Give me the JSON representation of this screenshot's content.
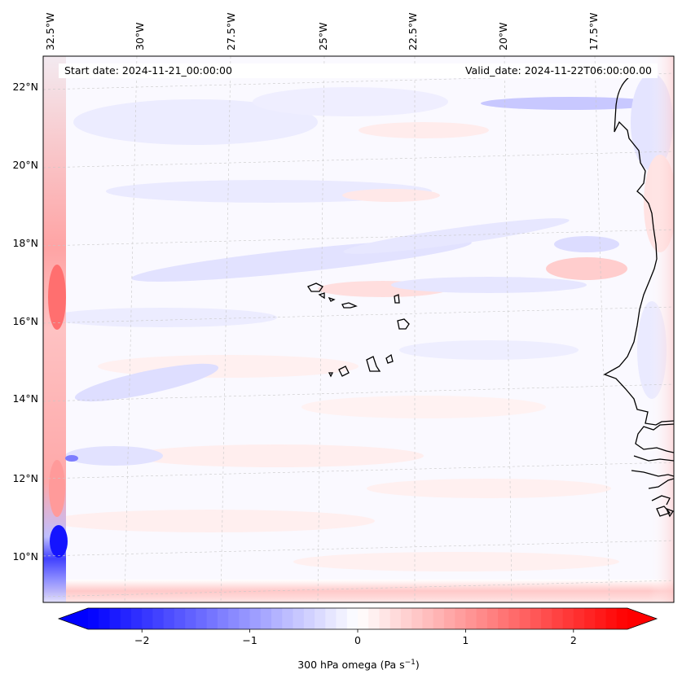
{
  "header": {
    "start_date": "Start date: 2024-11-21_00:00:00",
    "valid_date": "Valid_date: 2024-11-22T06:00:00.00"
  },
  "axes": {
    "lon_labels": [
      "32.5°W",
      "30°W",
      "27.5°W",
      "25°W",
      "22.5°W",
      "20°W",
      "17.5°W"
    ],
    "lat_labels": [
      "22°N",
      "20°N",
      "18°N",
      "16°N",
      "14°N",
      "12°N",
      "10°N"
    ]
  },
  "colorbar": {
    "label": "300 hPa omega (Pa s",
    "label_sup": "−1",
    "label_end": ")",
    "ticks": [
      "−2",
      "−1",
      "0",
      "1",
      "2"
    ],
    "tick_values": [
      -2,
      -1,
      0,
      1,
      2
    ],
    "range": [
      -2.5,
      2.5
    ],
    "colors": {
      "negative": "#0000ff",
      "zero": "#ffffff",
      "positive": "#ff0000"
    }
  },
  "map": {
    "coastline_color": "#000000",
    "grid": "dashed",
    "region": "Cabo Verde / West Africa"
  }
}
